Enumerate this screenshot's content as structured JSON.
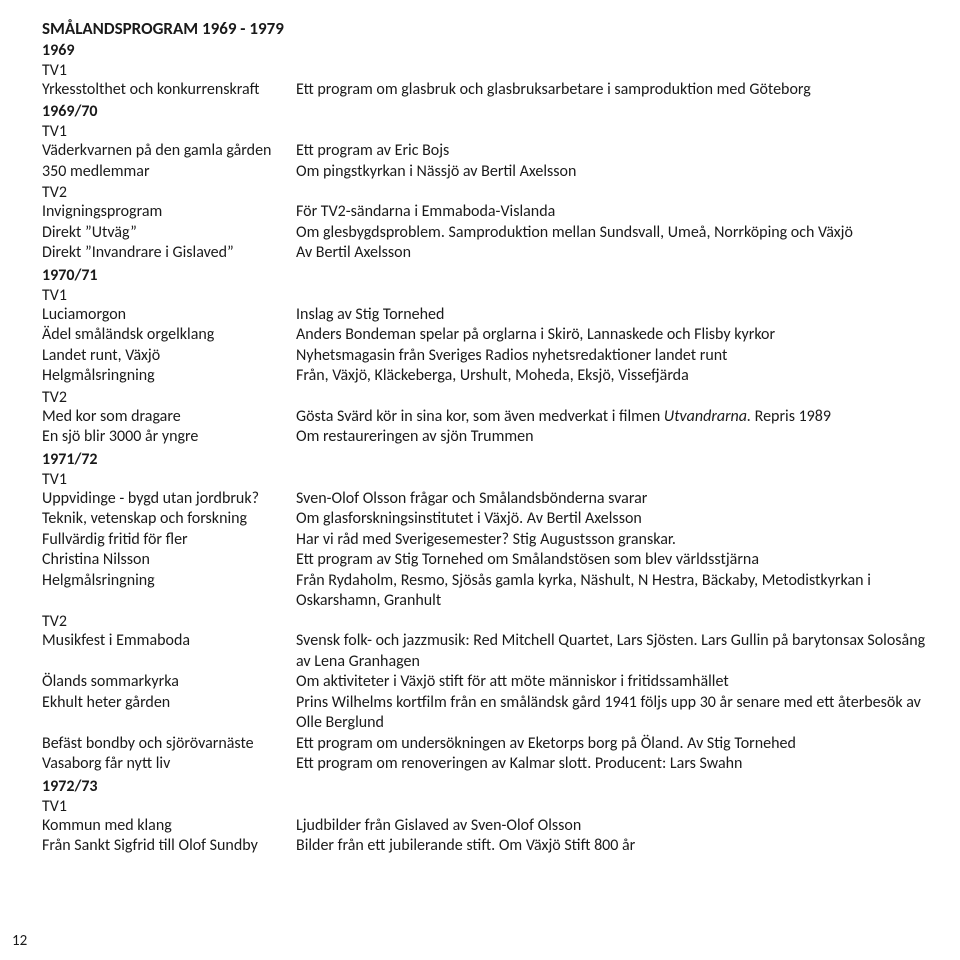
{
  "title": "SMÅLANDSPROGRAM 1969 - 1979",
  "page_number": "12",
  "sections": [
    {
      "label": "1969",
      "groups": [
        {
          "channel": "TV1",
          "rows": [
            {
              "l": "Yrkesstolthet och konkurrenskraft",
              "r": "Ett program om glasbruk och glasbruksarbetare i samproduktion med Göteborg"
            }
          ]
        }
      ]
    },
    {
      "label": "1969/70",
      "groups": [
        {
          "channel": "TV1",
          "rows": [
            {
              "l": "Väderkvarnen på den gamla gården",
              "r": "Ett program av Eric Bojs"
            },
            {
              "l": "350 medlemmar",
              "r": "Om pingstkyrkan i Nässjö av Bertil Axelsson"
            }
          ]
        },
        {
          "channel": "TV2",
          "rows": [
            {
              "l": "Invigningsprogram",
              "r": "För TV2-sändarna i Emmaboda-Vislanda"
            },
            {
              "l": "Direkt ”Utväg”",
              "r": "Om glesbygdsproblem. Samproduktion mellan Sundsvall, Umeå, Norrköping och Växjö"
            },
            {
              "l": "Direkt ”Invandrare i Gislaved”",
              "r": "Av Bertil Axelsson"
            }
          ]
        }
      ]
    },
    {
      "label": "1970/71",
      "groups": [
        {
          "channel": "TV1",
          "rows": [
            {
              "l": "Luciamorgon",
              "r": "Inslag av Stig Tornehed"
            },
            {
              "l": "Ädel småländsk orgelklang",
              "r": "Anders Bondeman spelar på orglarna i Skirö, Lannaskede och Flisby kyrkor"
            },
            {
              "l": "Landet runt, Växjö",
              "r": "Nyhetsmagasin från Sveriges Radios nyhetsredaktioner landet runt"
            },
            {
              "l": "Helgmålsringning",
              "r": "Från, Växjö, Kläckeberga, Urshult, Moheda, Eksjö, Vissefjärda"
            }
          ]
        },
        {
          "channel": "TV2",
          "rows": [
            {
              "l": "Med kor som dragare",
              "rHtml": "Gösta Svärd kör in sina kor, som även medverkat i filmen <span class=\"italic\">Utvandrarna.</span> Repris 1989"
            },
            {
              "l": "En sjö blir 3000 år yngre",
              "r": "Om restaureringen av sjön Trummen"
            }
          ]
        }
      ]
    },
    {
      "label": "1971/72",
      "groups": [
        {
          "channel": "TV1",
          "rows": [
            {
              "l": "Uppvidinge - bygd utan jordbruk?",
              "r": " Sven-Olof Olsson frågar och Smålandsbönderna svarar"
            },
            {
              "l": "Teknik, vetenskap och forskning",
              "r": "Om glasforskningsinstitutet i Växjö. Av Bertil Axelsson"
            },
            {
              "l": "Fullvärdig fritid för fler",
              "r": "Har vi råd med Sverigesemester? Stig Augustsson granskar."
            },
            {
              "l": "Christina Nilsson",
              "r": "Ett program av Stig Tornehed om Smålandstösen som blev världsstjärna"
            },
            {
              "l": "Helgmålsringning",
              "r": "Från Rydaholm, Resmo, Sjösås gamla kyrka, Näshult, N Hestra, Bäckaby, Metodistkyrkan i Oskarshamn, Granhult"
            }
          ]
        },
        {
          "channel": "TV2",
          "rows": [
            {
              "l": "Musikfest i Emmaboda",
              "r": "Svensk folk- och jazzmusik: Red Mitchell Quartet, Lars Sjösten. Lars Gullin på barytonsax Solosång av Lena Granhagen"
            },
            {
              "l": "Ölands sommarkyrka",
              "r": "Om aktiviteter i Växjö stift för att möte människor i fritidssamhället"
            },
            {
              "l": "Ekhult heter gården",
              "r": "Prins Wilhelms kortfilm från en småländsk gård 1941 följs upp 30 år senare med ett återbesök av Olle Berglund"
            },
            {
              "l": "Befäst bondby och sjörövarnäste",
              "r": "Ett program om undersökningen av Eketorps borg på Öland. Av Stig Tornehed"
            },
            {
              "l": "Vasaborg får nytt liv",
              "r": "Ett program om renoveringen av Kalmar slott. Producent: Lars Swahn"
            }
          ]
        }
      ]
    },
    {
      "label": "1972/73",
      "groups": [
        {
          "channel": "TV1",
          "rows": [
            {
              "l": "Kommun med klang",
              "r": "Ljudbilder från Gislaved av Sven-Olof Olsson"
            },
            {
              "l": "Från Sankt Sigfrid till Olof Sundby",
              "r": "Bilder från ett jubilerande stift. Om Växjö Stift 800 år"
            }
          ]
        }
      ]
    }
  ]
}
